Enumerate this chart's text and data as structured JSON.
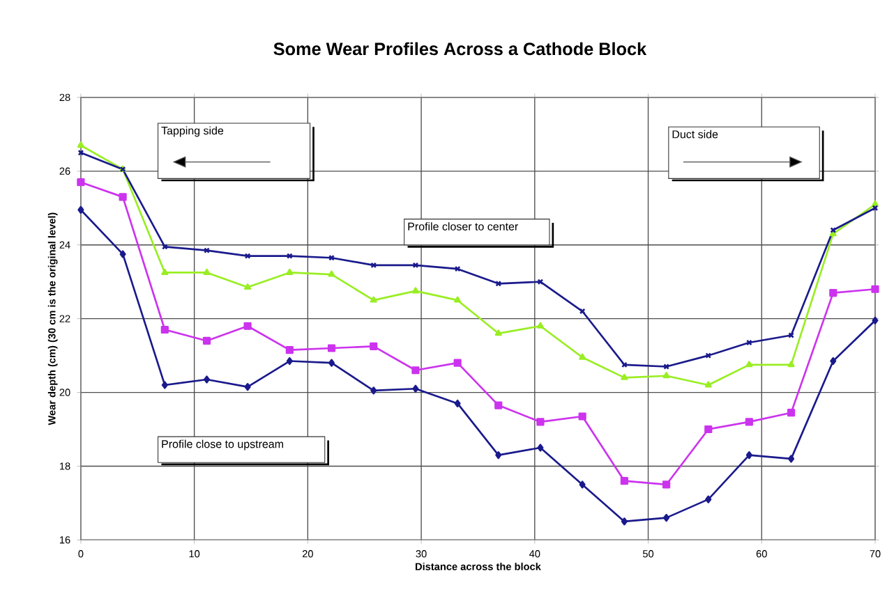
{
  "chart_data": {
    "type": "line",
    "title": "Some Wear Profiles Across a Cathode Block",
    "xlabel": "Distance across the block",
    "ylabel": "Wear depth (cm) (30 cm is the original level)",
    "x": [
      0,
      3.7,
      7.4,
      11.1,
      14.7,
      18.4,
      22.1,
      25.8,
      29.5,
      33.2,
      36.8,
      40.5,
      44.2,
      47.9,
      51.6,
      55.3,
      58.9,
      62.6,
      66.3,
      70
    ],
    "series": [
      {
        "color": "#1a1a8c",
        "marker": "cross",
        "values": [
          26.5,
          26.05,
          23.95,
          23.85,
          23.7,
          23.7,
          23.65,
          23.45,
          23.45,
          23.35,
          22.95,
          23.0,
          22.2,
          20.75,
          20.7,
          21.0,
          21.35,
          21.55,
          24.4,
          25.0
        ]
      },
      {
        "color": "#99ee22",
        "marker": "triangle",
        "values": [
          26.7,
          26.05,
          23.25,
          23.25,
          22.85,
          23.25,
          23.2,
          22.5,
          22.75,
          22.5,
          21.6,
          21.8,
          20.95,
          20.4,
          20.45,
          20.2,
          20.75,
          20.75,
          24.3,
          25.1
        ]
      },
      {
        "color": "#cc33ee",
        "marker": "square",
        "values": [
          25.7,
          25.3,
          21.7,
          21.4,
          21.8,
          21.15,
          21.2,
          21.25,
          20.6,
          20.8,
          19.65,
          19.2,
          19.35,
          17.6,
          17.5,
          19.0,
          19.2,
          19.45,
          22.7,
          22.8
        ]
      },
      {
        "color": "#1a1a8c",
        "marker": "diamond",
        "values": [
          24.95,
          23.75,
          20.2,
          20.35,
          20.15,
          20.85,
          20.8,
          20.05,
          20.1,
          19.7,
          18.3,
          18.5,
          17.5,
          16.5,
          16.6,
          17.1,
          18.3,
          18.2,
          20.85,
          21.95
        ]
      }
    ],
    "xlim": [
      0,
      70
    ],
    "xticks": [
      0,
      10,
      20,
      30,
      40,
      50,
      60,
      70
    ],
    "ylim": [
      16,
      28
    ],
    "yticks": [
      16,
      18,
      20,
      22,
      24,
      26,
      28
    ],
    "grid": true,
    "annotations": [
      "Tapping side",
      "Duct side",
      "Profile closer to center",
      "Profile close to upstream"
    ]
  }
}
